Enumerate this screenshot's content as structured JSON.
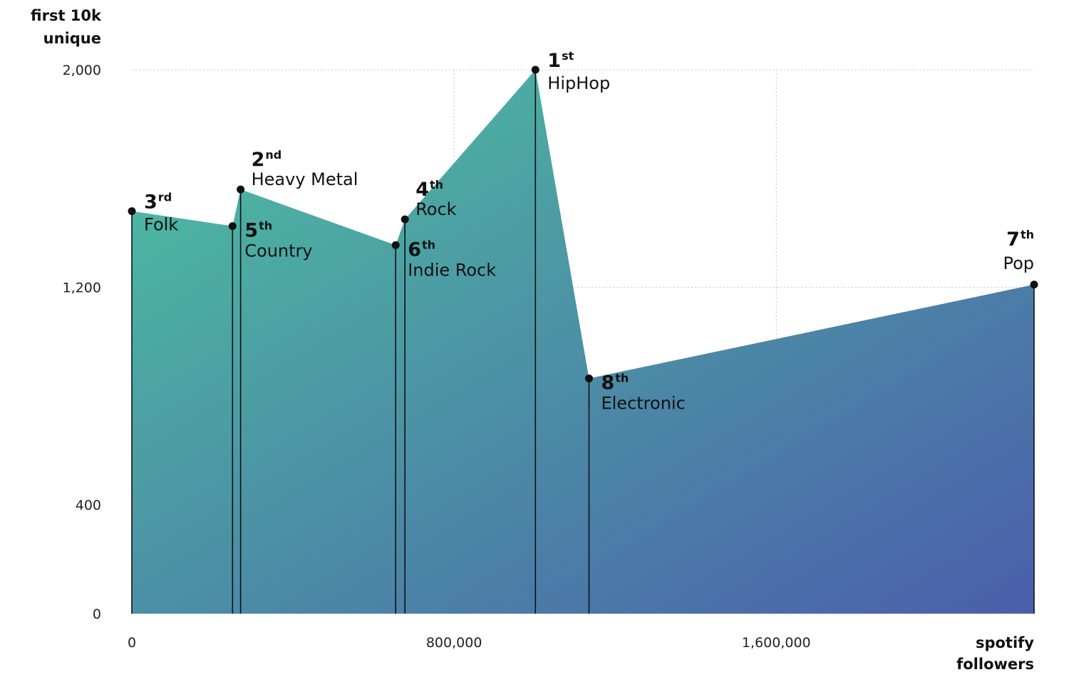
{
  "chart_data": {
    "type": "area",
    "xlabel": "spotify followers",
    "ylabel": "first 10k unique",
    "xlim": [
      0,
      2240000
    ],
    "ylim": [
      0,
      2000
    ],
    "x_ticks": [
      0,
      800000,
      1600000
    ],
    "x_tick_labels": [
      "0",
      "800,000",
      "1,600,000"
    ],
    "y_ticks": [
      0,
      400,
      1200,
      2000
    ],
    "y_tick_labels": [
      "0",
      "400",
      "1,200",
      "2,000"
    ],
    "grid": true,
    "fill_gradient": [
      "#4cc2a0",
      "#4b5eab"
    ],
    "points": [
      {
        "genre": "Folk",
        "rank": "3",
        "suffix": "rd",
        "x": 0,
        "y": 1480,
        "label_pos": "right"
      },
      {
        "genre": "Country",
        "rank": "5",
        "suffix": "th",
        "x": 250000,
        "y": 1425,
        "label_pos": "below-right"
      },
      {
        "genre": "Heavy Metal",
        "rank": "2",
        "suffix": "nd",
        "x": 270000,
        "y": 1560,
        "label_pos": "above-right"
      },
      {
        "genre": "Indie Rock",
        "rank": "6",
        "suffix": "th",
        "x": 655000,
        "y": 1355,
        "label_pos": "below-right"
      },
      {
        "genre": "Rock",
        "rank": "4",
        "suffix": "th",
        "x": 678000,
        "y": 1450,
        "label_pos": "above-right"
      },
      {
        "genre": "HipHop",
        "rank": "1",
        "suffix": "st",
        "x": 1002000,
        "y": 2000,
        "label_pos": "right"
      },
      {
        "genre": "Electronic",
        "rank": "8",
        "suffix": "th",
        "x": 1135000,
        "y": 865,
        "label_pos": "below-right"
      },
      {
        "genre": "Pop",
        "rank": "7",
        "suffix": "th",
        "x": 2240000,
        "y": 1210,
        "label_pos": "above-left"
      }
    ]
  }
}
